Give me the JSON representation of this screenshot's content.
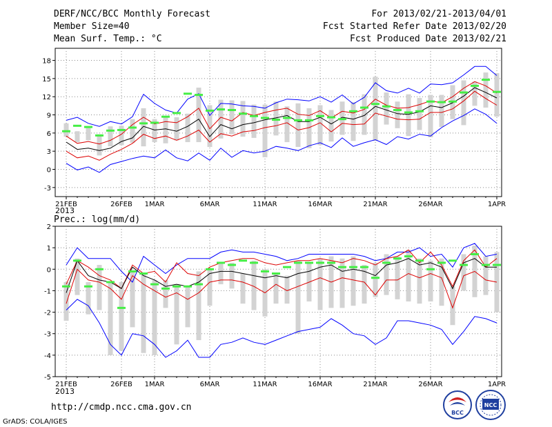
{
  "header": {
    "title": "DERF/NCC/BCC Monthly Forecast",
    "member_size": "Member Size=40",
    "variable": "Mean Surf. Temp.: °C",
    "period": "For 2013/02/21-2013/04/01",
    "fcst_started": "Fcst Started Refer Date 2013/02/20",
    "fcst_produced": "Fcst Produced Date 2013/02/21"
  },
  "footer": {
    "url": "http://cmdp.ncc.cma.gov.cn",
    "grads": "GrADS: COLA/IGES",
    "logo_bcc": "BCC",
    "logo_ncc": "NCC"
  },
  "colors": {
    "max_line": "#0000ff",
    "min_line": "#0000ff",
    "upper_spread": "#dd0000",
    "lower_spread": "#dd0000",
    "ensemble_mean": "#000000",
    "box": "#d3d3d3",
    "obs_bar": "#44ee44"
  },
  "chart_data": [
    {
      "type": "line",
      "title": "Mean Surf. Temp.: °C",
      "x_days": 40,
      "x_ticks": [
        {
          "day": 0,
          "label": "21FEB"
        },
        {
          "day": 5,
          "label": "26FEB"
        },
        {
          "day": 8,
          "label": "1MAR"
        },
        {
          "day": 13,
          "label": "6MAR"
        },
        {
          "day": 18,
          "label": "11MAR"
        },
        {
          "day": 23,
          "label": "16MAR"
        },
        {
          "day": 28,
          "label": "21MAR"
        },
        {
          "day": 33,
          "label": "26MAR"
        },
        {
          "day": 39,
          "label": "1APR"
        }
      ],
      "year_label": "2013",
      "ylim": [
        -4.5,
        20
      ],
      "yticks": [
        -3,
        0,
        3,
        6,
        9,
        12,
        15,
        18
      ],
      "series": [
        {
          "name": "max",
          "values": [
            8.1,
            8.6,
            7.6,
            7.1,
            7.9,
            7.5,
            8.7,
            12.4,
            10.9,
            9.8,
            9.3,
            11.6,
            12.5,
            8.9,
            10.9,
            10.8,
            10.5,
            10.4,
            10.1,
            11,
            11.6,
            11.5,
            11.3,
            12,
            11.1,
            12.3,
            10.8,
            11.9,
            14.3,
            13,
            12.6,
            13.4,
            12.6,
            14.1,
            14,
            14.3,
            15.6,
            17,
            17,
            15.5
          ]
        },
        {
          "name": "upper",
          "values": [
            5.5,
            4.3,
            4.6,
            4.2,
            4.8,
            5.8,
            7.4,
            8.6,
            7.5,
            7.9,
            7.7,
            8.7,
            10.1,
            6.7,
            8.6,
            8,
            9.4,
            8.9,
            9.4,
            9.8,
            10.1,
            9.1,
            8.9,
            9.7,
            8.5,
            9.6,
            9.3,
            9.9,
            11.6,
            10.6,
            10.1,
            10.2,
            10.7,
            11.3,
            11,
            12,
            13.4,
            14.5,
            13.8,
            12.6
          ]
        },
        {
          "name": "mean",
          "values": [
            4.5,
            3.3,
            3.5,
            3.1,
            3.5,
            4.6,
            5.2,
            7.1,
            6.5,
            6.7,
            6.3,
            7.1,
            8.3,
            5.4,
            7.4,
            6.7,
            7.4,
            7.7,
            8.2,
            8.5,
            8.9,
            7.9,
            7.9,
            8.6,
            7.5,
            8.6,
            8.3,
            8.9,
            10.4,
            9.8,
            9.2,
            9.1,
            9.5,
            10.5,
            10.2,
            11,
            12.1,
            13.5,
            12.7,
            11.8
          ]
        },
        {
          "name": "lower",
          "values": [
            3,
            1.9,
            2.2,
            1.5,
            2.5,
            3.3,
            4.3,
            5.8,
            5.1,
            5.5,
            4.8,
            5.5,
            6.5,
            4.5,
            5.9,
            5.5,
            6.2,
            6.4,
            6.9,
            7.2,
            7.7,
            6.5,
            6.9,
            7.7,
            6.2,
            7.6,
            7.4,
            7.5,
            9.3,
            8.8,
            8.3,
            8.2,
            8.3,
            9.4,
            9.4,
            10,
            11.3,
            12.9,
            11.7,
            10.6
          ]
        },
        {
          "name": "min",
          "values": [
            1,
            -0.1,
            0.4,
            -0.5,
            0.8,
            1.3,
            1.8,
            2.2,
            1.9,
            3.2,
            1.9,
            1.4,
            2.7,
            1.5,
            3.5,
            2,
            3.1,
            2.7,
            3,
            3.8,
            3.5,
            3.1,
            3.9,
            4.4,
            3.6,
            5.2,
            3.8,
            4.4,
            4.9,
            4.1,
            5.4,
            5,
            5.8,
            5.5,
            6.9,
            8,
            8.9,
            10,
            9.1,
            7.6
          ]
        }
      ],
      "boxes": [
        [
          5.4,
          7.6
        ],
        [
          4.5,
          6.3
        ],
        [
          4.8,
          7.1
        ],
        [
          2.3,
          5.8
        ],
        [
          3.8,
          7.1
        ],
        [
          4,
          7.2
        ],
        [
          4.4,
          8.3
        ],
        [
          3.8,
          10.1
        ],
        [
          4.5,
          8.3
        ],
        [
          4.3,
          8.8
        ],
        [
          4.8,
          8.6
        ],
        [
          4.5,
          9.2
        ],
        [
          4.5,
          13.5
        ],
        [
          3.7,
          10.6
        ],
        [
          5.1,
          11.5
        ],
        [
          5.8,
          11.4
        ],
        [
          5.4,
          11.3
        ],
        [
          5.2,
          10.7
        ],
        [
          2,
          10.7
        ],
        [
          5.6,
          11.2
        ],
        [
          4.5,
          10.4
        ],
        [
          3.7,
          10.9
        ],
        [
          3.5,
          10.1
        ],
        [
          4,
          10.6
        ],
        [
          4.6,
          9.8
        ],
        [
          5.7,
          11.2
        ],
        [
          4.7,
          11.1
        ],
        [
          5.7,
          12.4
        ],
        [
          4.7,
          15.3
        ],
        [
          7.4,
          12.7
        ],
        [
          6.8,
          11.2
        ],
        [
          5.5,
          12.4
        ],
        [
          6.5,
          11.8
        ],
        [
          5.3,
          12.3
        ],
        [
          7,
          12.3
        ],
        [
          8.3,
          13.9
        ],
        [
          7.3,
          14.7
        ],
        [
          10.5,
          14.5
        ],
        [
          10.2,
          16
        ],
        [
          8.7,
          15.9
        ]
      ],
      "obs": [
        6.3,
        7.2,
        7,
        5.6,
        6.4,
        6.5,
        6.9,
        7.6,
        7.7,
        8.7,
        9.3,
        12.5,
        12.3,
        9.7,
        9.9,
        9.8,
        9.2,
        8.8,
        8.5,
        8.2,
        8.5,
        8.1,
        8.1,
        8.8,
        8.6,
        8.3,
        9.6,
        10.2,
        10.8,
        10.4,
        9.8,
        9.4,
        9.6,
        11.2,
        11.1,
        11.2,
        12.7,
        13.8,
        14.8,
        12.8
      ]
    },
    {
      "type": "line",
      "title": "Prec.: log(mm/d)",
      "x_days": 40,
      "x_ticks": [
        {
          "day": 0,
          "label": "21FEB"
        },
        {
          "day": 5,
          "label": "26FEB"
        },
        {
          "day": 8,
          "label": "1MAR"
        },
        {
          "day": 13,
          "label": "6MAR"
        },
        {
          "day": 18,
          "label": "11MAR"
        },
        {
          "day": 23,
          "label": "16MAR"
        },
        {
          "day": 28,
          "label": "21MAR"
        },
        {
          "day": 33,
          "label": "26MAR"
        },
        {
          "day": 39,
          "label": "1APR"
        }
      ],
      "year_label": "2013",
      "ylim": [
        -5,
        2
      ],
      "yticks": [
        -5,
        -4,
        -3,
        -2,
        -1,
        0,
        1,
        2
      ],
      "series": [
        {
          "name": "max",
          "values": [
            0.2,
            1,
            0.5,
            0.5,
            0.5,
            -0.1,
            -0.6,
            0.6,
            0.2,
            -0.2,
            0.2,
            0.5,
            0.5,
            0.5,
            0.8,
            0.9,
            0.8,
            0.8,
            0.7,
            0.6,
            0.4,
            0.5,
            0.7,
            0.7,
            0.7,
            0.7,
            0.7,
            0.6,
            0.4,
            0.5,
            0.8,
            0.8,
            1,
            0.6,
            0.7,
            0.1,
            1,
            1.2,
            0.6,
            0.7
          ]
        },
        {
          "name": "upper",
          "values": [
            -0.7,
            0.4,
            0.1,
            -0.3,
            -0.5,
            -0.9,
            0.2,
            -0.2,
            -0.1,
            -0.6,
            0.3,
            -0.2,
            -0.3,
            0.1,
            0.3,
            0.4,
            0.5,
            0.5,
            0.3,
            0.2,
            0.3,
            0.4,
            0.4,
            0.5,
            0.4,
            0.3,
            0.5,
            0.4,
            0.2,
            0.5,
            0.6,
            0.9,
            0.3,
            0.8,
            0.2,
            -0.8,
            0.4,
            0.9,
            0.1,
            0.5
          ]
        },
        {
          "name": "mean",
          "values": [
            -1.1,
            0.4,
            -0.3,
            -0.5,
            -0.6,
            -0.9,
            0.1,
            -0.3,
            -0.5,
            -0.8,
            -0.7,
            -0.8,
            -0.6,
            -0.2,
            -0.1,
            -0.1,
            -0.2,
            -0.3,
            -0.4,
            -0.3,
            -0.4,
            -0.2,
            -0.1,
            0.1,
            0.2,
            -0.1,
            0,
            -0.1,
            -0.3,
            0.2,
            0.3,
            0.5,
            0.2,
            0.3,
            0.1,
            -0.9,
            0.3,
            0.5,
            0.1,
            0.1
          ]
        },
        {
          "name": "lower",
          "values": [
            -1.6,
            0,
            -0.5,
            -0.6,
            -0.9,
            -1.4,
            -0.3,
            -0.7,
            -1,
            -1.3,
            -1.1,
            -1.4,
            -1.1,
            -0.6,
            -0.5,
            -0.5,
            -0.6,
            -0.8,
            -1.1,
            -0.7,
            -1,
            -0.8,
            -0.6,
            -0.4,
            -0.6,
            -0.4,
            -0.5,
            -0.6,
            -1.2,
            -0.5,
            -0.5,
            -0.2,
            -0.4,
            -0.2,
            -0.4,
            -1.8,
            -0.3,
            -0.1,
            -0.5,
            -0.6
          ]
        },
        {
          "name": "min",
          "values": [
            -1.9,
            -1.4,
            -1.7,
            -2.5,
            -3.5,
            -4,
            -3,
            -3.1,
            -3.5,
            -4.1,
            -3.8,
            -3.3,
            -4.1,
            -4.1,
            -3.5,
            -3.4,
            -3.2,
            -3.4,
            -3.5,
            -3.3,
            -3.1,
            -2.9,
            -2.8,
            -2.7,
            -2.3,
            -2.6,
            -3,
            -3.1,
            -3.5,
            -3.2,
            -2.4,
            -2.4,
            -2.5,
            -2.6,
            -2.8,
            -3.5,
            -2.9,
            -2.2,
            -2.3,
            -2.5
          ]
        }
      ],
      "boxes": [
        [
          -2.4,
          -0.6
        ],
        [
          -1.2,
          0.5
        ],
        [
          -2.1,
          -0.6
        ],
        [
          -1.9,
          0.2
        ],
        [
          -4,
          -0.6
        ],
        [
          -3.8,
          -0.6
        ],
        [
          -2.7,
          -0.1
        ],
        [
          -3.9,
          -0.2
        ],
        [
          -4,
          -0.5
        ],
        [
          -1.8,
          -0.5
        ],
        [
          -3.5,
          -0.7
        ],
        [
          -2.7,
          -0.8
        ],
        [
          -3.3,
          -0.1
        ],
        [
          -1.7,
          0
        ],
        [
          -0.7,
          0.3
        ],
        [
          -0.9,
          0.3
        ],
        [
          -1.6,
          -0.2
        ],
        [
          -1.9,
          0.4
        ],
        [
          -2.2,
          0
        ],
        [
          -1.6,
          -0.2
        ],
        [
          -1.6,
          -0.3
        ],
        [
          -3,
          0.4
        ],
        [
          -1.5,
          0.3
        ],
        [
          -1.9,
          0.5
        ],
        [
          -1.8,
          0.6
        ],
        [
          -1.8,
          0.5
        ],
        [
          -1.7,
          0.6
        ],
        [
          -1.6,
          0.2
        ],
        [
          -1.3,
          0.3
        ],
        [
          -1.2,
          0.7
        ],
        [
          -1.4,
          0.6
        ],
        [
          -1.5,
          0.9
        ],
        [
          -1.6,
          0.5
        ],
        [
          -1.5,
          0.4
        ],
        [
          -1.7,
          0.5
        ],
        [
          -2.6,
          -0.8
        ],
        [
          -1,
          0.7
        ],
        [
          -1.3,
          1.1
        ],
        [
          -1.2,
          0.6
        ],
        [
          -2,
          0.8
        ]
      ],
      "obs": [
        -0.8,
        0.4,
        -0.8,
        0,
        -0.6,
        -1.8,
        -0.1,
        -0.2,
        -0.7,
        -0.9,
        -0.8,
        -0.8,
        -0.7,
        0,
        0.3,
        0.2,
        0.4,
        0.3,
        -0.1,
        -0.2,
        0.1,
        0.3,
        0.3,
        0.3,
        0.3,
        0.1,
        0.1,
        0.1,
        -0.4,
        0.3,
        0.5,
        0.6,
        0.4,
        0,
        0.3,
        0.4,
        0.2,
        0.7,
        0.2,
        0.2
      ]
    }
  ]
}
